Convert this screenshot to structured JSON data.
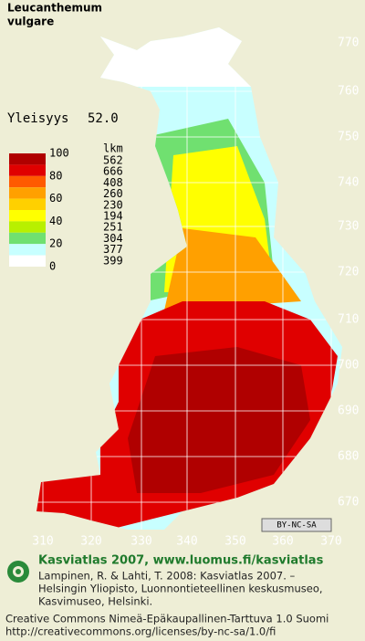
{
  "title_lines": [
    "Leucanthemum",
    "vulgare"
  ],
  "frequency": {
    "label": "Yleisyys",
    "value": "52.0"
  },
  "legend": {
    "scale_labels": [
      "100",
      "80",
      "60",
      "40",
      "20",
      "0"
    ],
    "count_header": "lkm",
    "counts": [
      "562",
      "666",
      "408",
      "260",
      "230",
      "194",
      "251",
      "304",
      "377",
      "399"
    ],
    "colors": [
      "#b00000",
      "#e00000",
      "#ff5a00",
      "#ffa000",
      "#ffd000",
      "#ffff00",
      "#b8f000",
      "#70e070",
      "#c8ffff",
      "#ffffff"
    ]
  },
  "map": {
    "y_labels": [
      "770",
      "760",
      "750",
      "740",
      "730",
      "720",
      "710",
      "700",
      "690",
      "680",
      "670"
    ],
    "x_labels": [
      "310",
      "320",
      "330",
      "340",
      "350",
      "360",
      "370"
    ]
  },
  "license_badge": "BY-NC-SA",
  "footer": {
    "headline": "Kasviatlas 2007, www.luomus.fi/kasviatlas",
    "citation_lines": [
      "Lampinen, R. & Lahti, T. 2008: Kasviatlas 2007. –",
      "Helsingin Yliopisto, Luonnontieteellinen keskusmuseo,",
      "Kasvimuseo, Helsinki."
    ],
    "license_lines": [
      "Creative Commons Nimeä-Epäkaupallinen-Tarttuva 1.0 Suomi",
      "http://creativecommons.org/licenses/by-nc-sa/1.0/fi"
    ]
  }
}
